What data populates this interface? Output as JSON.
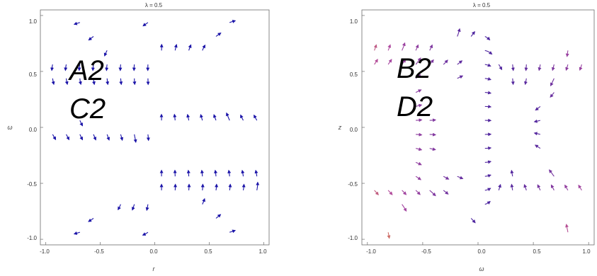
{
  "chart_data": [
    {
      "type": "streamplot",
      "title": "λ = 0.5",
      "xlabel": "r",
      "ylabel": "ω",
      "xlim": [
        -1.0,
        1.0
      ],
      "ylim": [
        -1.0,
        1.0
      ],
      "xticks": [
        "-1.0",
        "-0.5",
        "0.0",
        "0.5",
        "1.0"
      ],
      "yticks": [
        "1.0",
        "0.5",
        "0.0",
        "-0.5",
        "-1.0"
      ],
      "annotations": [
        "A2",
        "C2"
      ],
      "colors": {
        "slow": "#1b14a8",
        "fast": "#f5a623"
      }
    },
    {
      "type": "streamplot",
      "title": "λ = 0.5",
      "xlabel": "ω",
      "ylabel": "z",
      "xlim": [
        -1.0,
        1.0
      ],
      "ylim": [
        -1.0,
        1.0
      ],
      "xticks": [
        "-1.0",
        "-0.5",
        "0.0",
        "0.5",
        "1.0"
      ],
      "yticks": [
        "1.0",
        "0.5",
        "0.0",
        "-0.5",
        "-1.0"
      ],
      "annotations": [
        "B2",
        "D2"
      ],
      "colors": {
        "slow": "#3f1f9e",
        "mid": "#b04aa0",
        "fast": "#f59a1e"
      }
    }
  ]
}
